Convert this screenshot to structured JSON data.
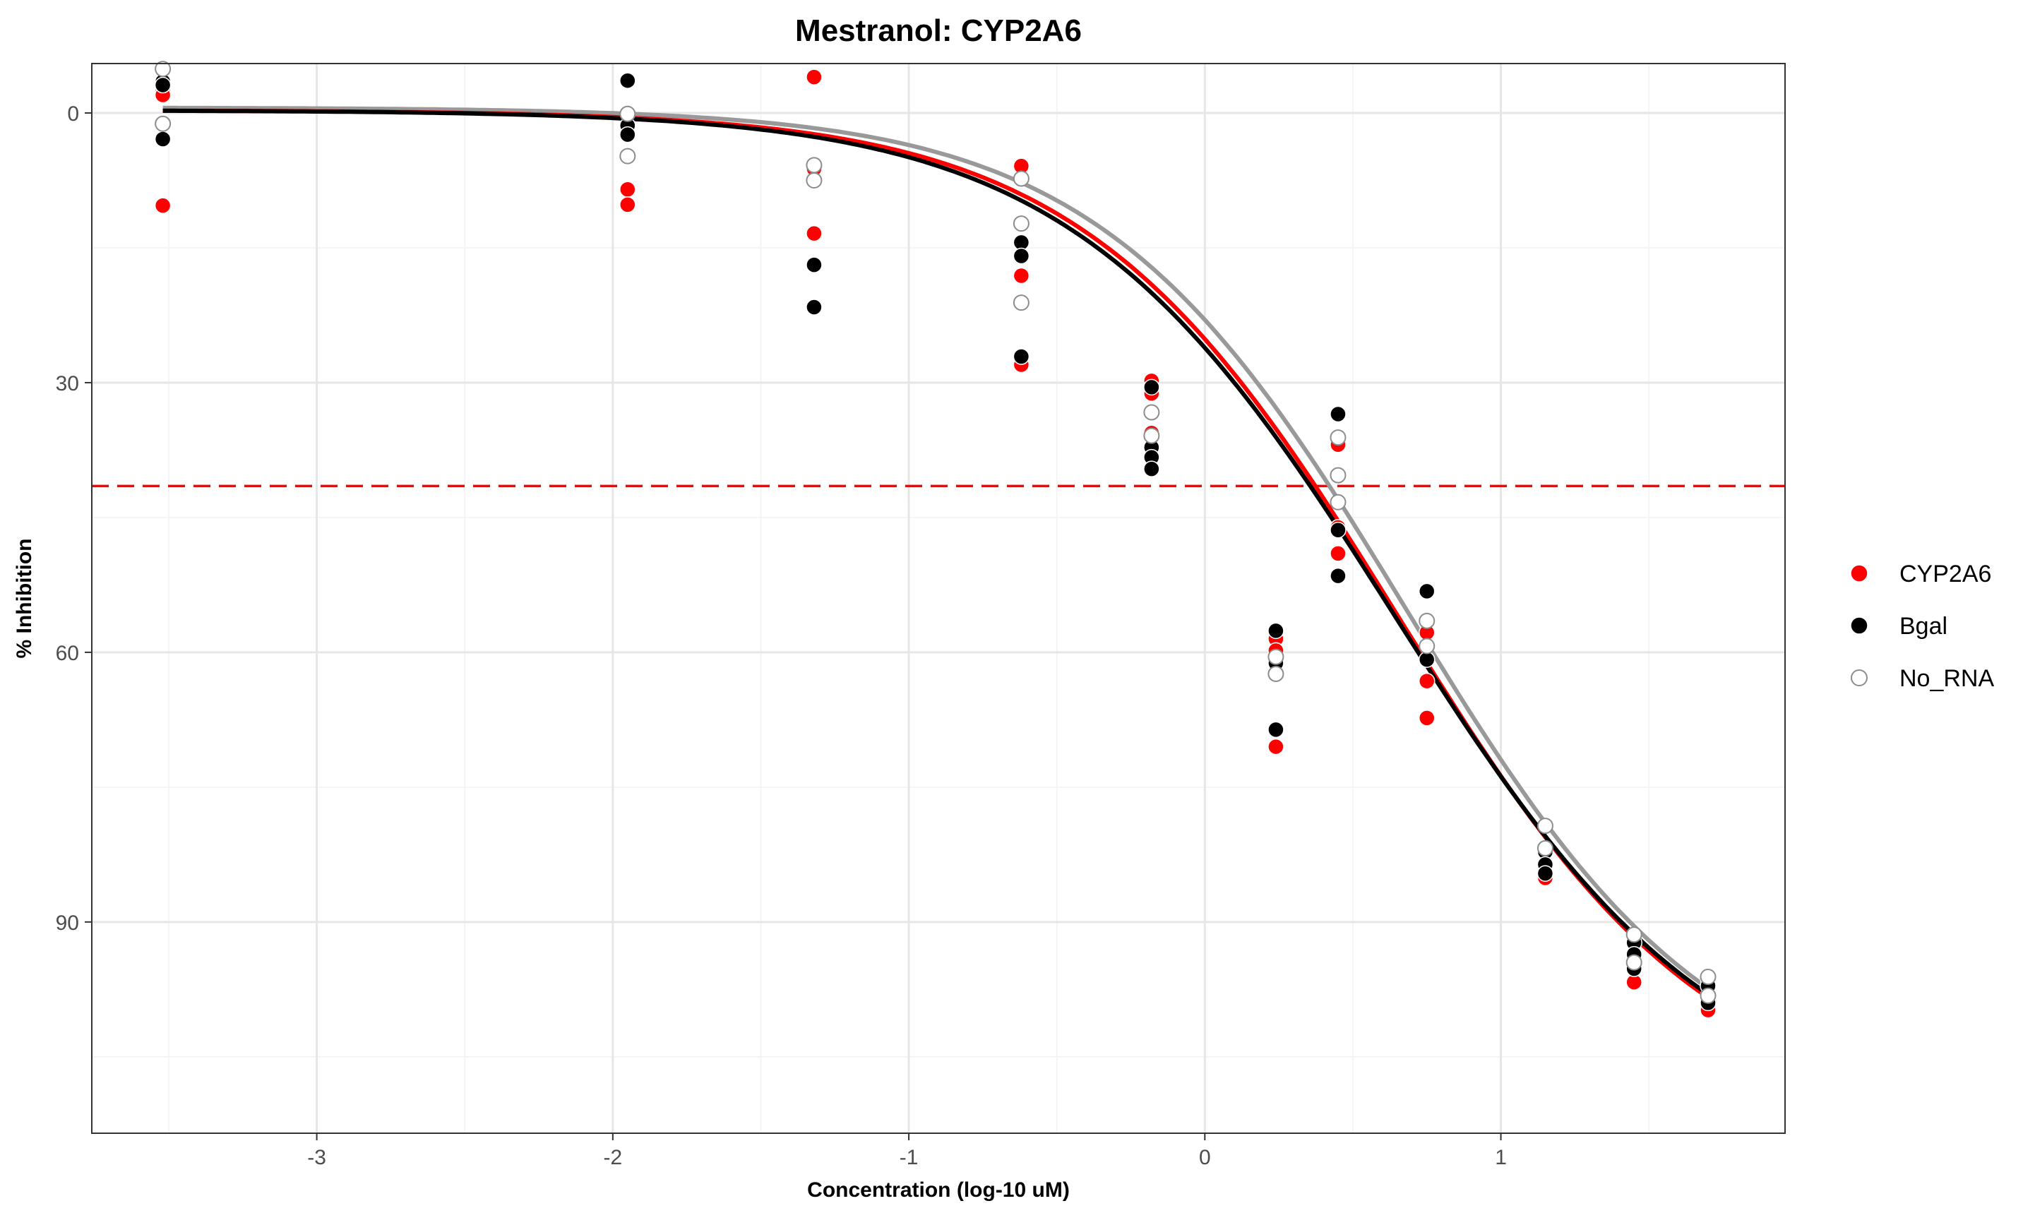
{
  "chart_data": {
    "type": "scatter",
    "title": "Mestranol: CYP2A6",
    "xlabel": "Concentration (log-10 uM)",
    "ylabel": "% Inhibition",
    "x_ticks": [
      -3,
      -2,
      -1,
      0,
      1
    ],
    "y_ticks": [
      0,
      30,
      60,
      90
    ],
    "xlim": [
      -3.76,
      1.96
    ],
    "ylim": [
      -5.5,
      113.5
    ],
    "y_reversed": true,
    "grid": true,
    "legend_position": "right",
    "reference_line": {
      "y": 41.5,
      "color": "#ff0000",
      "style": "dashed"
    },
    "series": [
      {
        "name": "CYP2A6",
        "color": "#ff0000",
        "marker": "filled-circle",
        "points": [
          [
            -3.52,
            -2.5
          ],
          [
            -3.52,
            -2.0
          ],
          [
            -3.52,
            10.3
          ],
          [
            -1.95,
            8.5
          ],
          [
            -1.95,
            10.2
          ],
          [
            -1.32,
            -4.0
          ],
          [
            -1.32,
            6.2
          ],
          [
            -1.32,
            13.4
          ],
          [
            -0.62,
            5.9
          ],
          [
            -0.62,
            18.1
          ],
          [
            -0.62,
            28.0
          ],
          [
            -0.18,
            29.8
          ],
          [
            -0.18,
            31.2
          ],
          [
            -0.18,
            35.6
          ],
          [
            0.24,
            58.5
          ],
          [
            0.24,
            59.8
          ],
          [
            0.24,
            70.5
          ],
          [
            0.45,
            36.2
          ],
          [
            0.45,
            36.9
          ],
          [
            0.45,
            46.1
          ],
          [
            0.45,
            49.0
          ],
          [
            0.75,
            57.8
          ],
          [
            0.75,
            63.2
          ],
          [
            0.75,
            67.3
          ],
          [
            1.15,
            83.5
          ],
          [
            1.15,
            85.1
          ],
          [
            1.45,
            93.8
          ],
          [
            1.45,
            96.7
          ],
          [
            1.7,
            98.2
          ],
          [
            1.7,
            99.8
          ]
        ],
        "curve": {
          "bottom": -0.3,
          "top": 112,
          "ic50": 0.65,
          "hill": 0.82
        }
      },
      {
        "name": "Bgal",
        "color": "#000000",
        "marker": "filled-circle",
        "points": [
          [
            -3.52,
            -3.5
          ],
          [
            -3.52,
            -3.1
          ],
          [
            -3.52,
            2.9
          ],
          [
            -1.95,
            -3.6
          ],
          [
            -1.95,
            1.4
          ],
          [
            -1.95,
            2.4
          ],
          [
            -1.32,
            16.9
          ],
          [
            -1.32,
            21.6
          ],
          [
            -0.62,
            14.4
          ],
          [
            -0.62,
            15.9
          ],
          [
            -0.62,
            27.1
          ],
          [
            -0.18,
            30.5
          ],
          [
            -0.18,
            37.2
          ],
          [
            -0.18,
            38.3
          ],
          [
            -0.18,
            39.6
          ],
          [
            0.24,
            57.6
          ],
          [
            0.24,
            61.2
          ],
          [
            0.24,
            68.6
          ],
          [
            0.45,
            33.5
          ],
          [
            0.45,
            46.4
          ],
          [
            0.45,
            51.5
          ],
          [
            0.75,
            53.2
          ],
          [
            0.75,
            60.8
          ],
          [
            1.15,
            82.2
          ],
          [
            1.15,
            83.6
          ],
          [
            1.15,
            84.6
          ],
          [
            1.45,
            92.3
          ],
          [
            1.45,
            93.6
          ],
          [
            1.45,
            95.2
          ],
          [
            1.7,
            96.3
          ],
          [
            1.7,
            97.1
          ],
          [
            1.7,
            99.0
          ]
        ],
        "curve": {
          "bottom": -0.3,
          "top": 112,
          "ic50": 0.64,
          "hill": 0.8
        }
      },
      {
        "name": "No_RNA",
        "color": "#8c8c8c",
        "marker": "open-circle",
        "points": [
          [
            -3.52,
            -4.9
          ],
          [
            -3.52,
            1.2
          ],
          [
            -1.95,
            0.1
          ],
          [
            -1.95,
            4.8
          ],
          [
            -1.32,
            5.8
          ],
          [
            -1.32,
            7.5
          ],
          [
            -0.62,
            7.3
          ],
          [
            -0.62,
            12.3
          ],
          [
            -0.62,
            21.1
          ],
          [
            -0.18,
            33.3
          ],
          [
            -0.18,
            35.9
          ],
          [
            0.24,
            60.5
          ],
          [
            0.24,
            62.4
          ],
          [
            0.45,
            36.1
          ],
          [
            0.45,
            40.3
          ],
          [
            0.45,
            43.3
          ],
          [
            0.75,
            56.5
          ],
          [
            0.75,
            59.3
          ],
          [
            1.15,
            79.3
          ],
          [
            1.15,
            81.8
          ],
          [
            1.45,
            91.4
          ],
          [
            1.45,
            94.5
          ],
          [
            1.7,
            96.1
          ],
          [
            1.7,
            98.2
          ]
        ],
        "curve": {
          "bottom": -0.6,
          "top": 111,
          "ic50": 0.68,
          "hill": 0.84
        }
      }
    ]
  }
}
